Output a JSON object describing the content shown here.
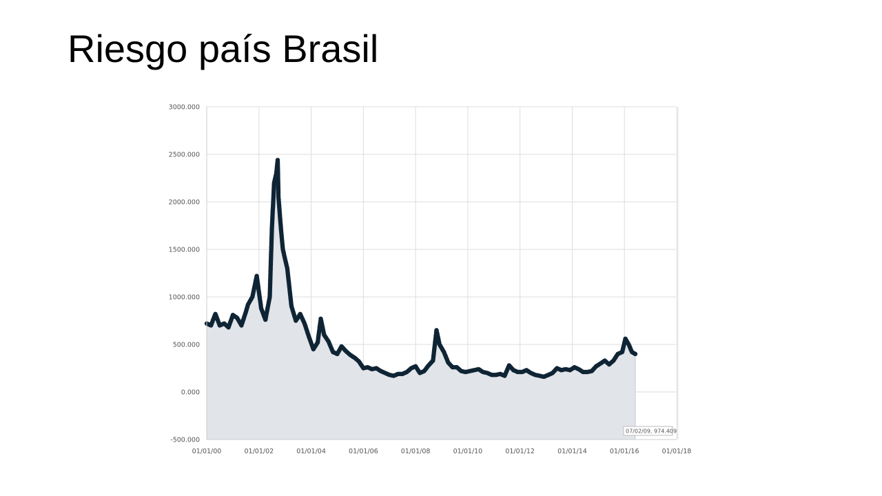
{
  "slide": {
    "title": "Riesgo país Brasil"
  },
  "colors": {
    "area_fill": "#e1e4e8",
    "line": "#1aa3e0",
    "marker": "#0f2535",
    "grid": "#dddddd"
  },
  "tooltip": {
    "text": "07/02/09, 974.409"
  },
  "chart_data": {
    "type": "area",
    "title": "",
    "xlabel": "",
    "ylabel": "",
    "x_range": [
      "2000-01-01",
      "2018-01-01"
    ],
    "ylim": [
      -500,
      3000
    ],
    "y_ticks": [
      3000,
      2500,
      2000,
      1500,
      1000,
      500,
      0,
      -500
    ],
    "y_tick_labels": [
      "3000.000",
      "2500.000",
      "2000.000",
      "1500.000",
      "1000.000",
      "500.000",
      "0.000",
      "-500.000"
    ],
    "x_ticks": [
      "2000-01-01",
      "2002-01-01",
      "2004-01-01",
      "2006-01-01",
      "2008-01-01",
      "2010-01-01",
      "2012-01-01",
      "2014-01-01",
      "2016-01-01",
      "2018-01-01"
    ],
    "x_tick_labels": [
      "01/01/00",
      "01/01/02",
      "01/01/04",
      "01/01/06",
      "01/01/08",
      "01/01/10",
      "01/01/12",
      "01/01/14",
      "01/01/16",
      "01/01/18"
    ],
    "grid": true,
    "legend": "none",
    "series": [
      {
        "x": [
          "2000-01-01",
          "2000-03-01",
          "2000-05-01",
          "2000-07-01",
          "2000-09-01",
          "2000-11-01",
          "2001-01-01",
          "2001-03-01",
          "2001-05-01",
          "2001-07-01",
          "2001-08-01",
          "2001-10-01",
          "2001-12-01",
          "2002-02-01",
          "2002-04-01",
          "2002-06-01",
          "2002-07-01",
          "2002-08-01",
          "2002-09-01",
          "2002-09-20",
          "2002-10-01",
          "2002-11-01",
          "2002-12-01",
          "2003-02-01",
          "2003-04-01",
          "2003-06-01",
          "2003-08-01",
          "2003-10-01",
          "2003-12-01",
          "2004-02-01",
          "2004-04-01",
          "2004-05-15",
          "2004-07-01",
          "2004-09-01",
          "2004-11-01",
          "2005-01-01",
          "2005-03-01",
          "2005-05-01",
          "2005-07-01",
          "2005-09-01",
          "2005-11-01",
          "2006-01-01",
          "2006-03-01",
          "2006-05-01",
          "2006-07-01",
          "2006-09-01",
          "2006-11-01",
          "2007-01-01",
          "2007-03-01",
          "2007-05-01",
          "2007-07-01",
          "2007-09-01",
          "2007-11-01",
          "2008-01-01",
          "2008-03-01",
          "2008-05-01",
          "2008-07-01",
          "2008-09-01",
          "2008-10-20",
          "2008-12-01",
          "2009-02-01",
          "2009-04-01",
          "2009-06-01",
          "2009-08-01",
          "2009-10-01",
          "2009-12-01",
          "2010-02-01",
          "2010-04-01",
          "2010-06-01",
          "2010-08-01",
          "2010-10-01",
          "2010-12-01",
          "2011-02-01",
          "2011-04-01",
          "2011-06-01",
          "2011-08-01",
          "2011-10-01",
          "2011-12-01",
          "2012-02-01",
          "2012-04-01",
          "2012-06-01",
          "2012-08-01",
          "2012-10-01",
          "2012-12-01",
          "2013-02-01",
          "2013-04-01",
          "2013-06-01",
          "2013-08-01",
          "2013-10-01",
          "2013-12-01",
          "2014-02-01",
          "2014-04-01",
          "2014-06-01",
          "2014-08-01",
          "2014-10-01",
          "2014-12-01",
          "2015-02-01",
          "2015-04-01",
          "2015-06-01",
          "2015-08-01",
          "2015-10-01",
          "2015-12-01",
          "2016-01-15",
          "2016-03-01",
          "2016-04-15",
          "2016-06-01"
        ],
        "y": [
          720,
          700,
          820,
          700,
          720,
          680,
          810,
          780,
          700,
          840,
          920,
          1000,
          1220,
          880,
          760,
          1000,
          1720,
          2200,
          2300,
          2440,
          2050,
          1750,
          1500,
          1300,
          900,
          750,
          820,
          720,
          580,
          450,
          520,
          770,
          600,
          530,
          420,
          400,
          480,
          430,
          390,
          360,
          320,
          250,
          260,
          240,
          250,
          220,
          200,
          180,
          170,
          190,
          190,
          210,
          250,
          270,
          200,
          220,
          280,
          330,
          650,
          500,
          420,
          310,
          260,
          260,
          220,
          210,
          220,
          230,
          240,
          210,
          200,
          180,
          180,
          190,
          170,
          280,
          230,
          210,
          210,
          230,
          200,
          180,
          170,
          160,
          180,
          200,
          250,
          230,
          240,
          230,
          260,
          240,
          210,
          210,
          220,
          270,
          300,
          330,
          290,
          330,
          400,
          420,
          560,
          500,
          420,
          400
        ]
      }
    ]
  }
}
